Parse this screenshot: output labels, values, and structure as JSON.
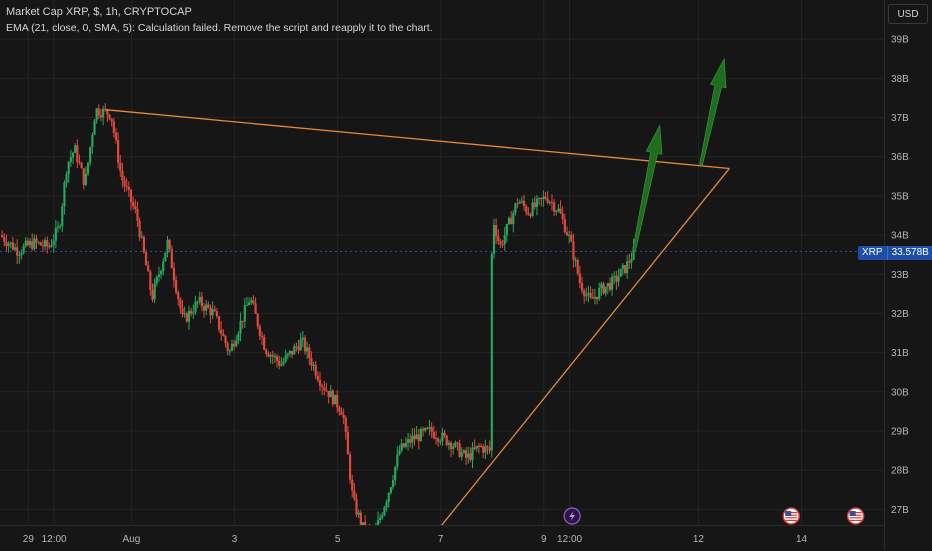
{
  "header": {
    "title": "Market Cap XRP, $, 1h, CRYPTOCAP",
    "indicator_error": "EMA (21, close, 0, SMA, 5): Calculation failed. Remove the script and reapply it to the chart."
  },
  "currency_button": "USD",
  "last_price": {
    "symbol": "XRP",
    "value_label": "33.578B",
    "color": "#1e4fa8"
  },
  "colors": {
    "up": "#26a65b",
    "down": "#e0483c",
    "trendline": "#e5893a",
    "arrow": "#1f6e1f",
    "background": "#161616"
  },
  "event_icons": [
    "lightning-icon",
    "us-flag-icon",
    "us-flag-icon"
  ],
  "chart_data": {
    "type": "candlestick",
    "title": "Market Cap XRP, $, 1h, CRYPTOCAP",
    "xlabel": "",
    "ylabel": "",
    "y_unit": "B USD",
    "ylim": [
      26.6,
      40.0
    ],
    "y_ticks": [
      27,
      28,
      29,
      30,
      31,
      32,
      33,
      34,
      35,
      36,
      37,
      38,
      39
    ],
    "y_tick_labels": [
      "27B",
      "28B",
      "29B",
      "30B",
      "31B",
      "32B",
      "33B",
      "34B",
      "35B",
      "36B",
      "37B",
      "38B",
      "39B"
    ],
    "x_ticks": [
      {
        "label": "29",
        "day": 29.0
      },
      {
        "label": "12:00",
        "day": 29.5
      },
      {
        "label": "Aug",
        "day": 31.0
      },
      {
        "label": "3",
        "day": 33.0
      },
      {
        "label": "5",
        "day": 35.0
      },
      {
        "label": "7",
        "day": 37.0
      },
      {
        "label": "9",
        "day": 39.0
      },
      {
        "label": "12:00",
        "day": 39.5
      },
      {
        "label": "12",
        "day": 42.0
      },
      {
        "label": "14",
        "day": 44.0
      }
    ],
    "x_range_days": [
      28.45,
      45.6
    ],
    "price_path": [
      [
        28.45,
        34.0
      ],
      [
        28.8,
        33.6
      ],
      [
        29.1,
        33.8
      ],
      [
        29.4,
        33.7
      ],
      [
        29.6,
        34.2
      ],
      [
        29.75,
        35.8
      ],
      [
        29.9,
        36.2
      ],
      [
        30.1,
        35.3
      ],
      [
        30.3,
        37.2
      ],
      [
        30.6,
        37.1
      ],
      [
        30.8,
        35.5
      ],
      [
        31.1,
        34.5
      ],
      [
        31.4,
        32.4
      ],
      [
        31.7,
        33.8
      ],
      [
        32.0,
        31.8
      ],
      [
        32.3,
        32.3
      ],
      [
        32.6,
        32.0
      ],
      [
        32.9,
        31.0
      ],
      [
        33.3,
        32.4
      ],
      [
        33.6,
        31.1
      ],
      [
        33.9,
        30.7
      ],
      [
        34.3,
        31.3
      ],
      [
        34.7,
        30.2
      ],
      [
        35.1,
        29.5
      ],
      [
        35.3,
        27.2
      ],
      [
        35.5,
        26.5
      ],
      [
        35.7,
        26.3
      ],
      [
        36.0,
        27.5
      ],
      [
        36.2,
        28.5
      ],
      [
        36.45,
        28.8
      ],
      [
        36.8,
        29.0
      ],
      [
        37.2,
        28.7
      ],
      [
        37.5,
        28.3
      ],
      [
        37.75,
        28.6
      ],
      [
        37.95,
        28.5
      ],
      [
        38.0,
        34.5
      ],
      [
        38.15,
        33.7
      ],
      [
        38.3,
        34.2
      ],
      [
        38.5,
        34.9
      ],
      [
        38.7,
        34.6
      ],
      [
        38.9,
        34.8
      ],
      [
        39.05,
        35.0
      ],
      [
        39.3,
        34.6
      ],
      [
        39.5,
        33.9
      ],
      [
        39.7,
        32.8
      ],
      [
        39.9,
        32.3
      ],
      [
        40.1,
        32.6
      ],
      [
        40.35,
        32.8
      ],
      [
        40.6,
        33.2
      ],
      [
        40.75,
        33.58
      ]
    ],
    "annotations": [
      {
        "type": "trendline",
        "name": "upper-resistance",
        "from": [
          30.5,
          37.2
        ],
        "to": [
          42.6,
          35.7
        ]
      },
      {
        "type": "trendline",
        "name": "lower-support",
        "from": [
          36.9,
          26.4
        ],
        "to": [
          42.6,
          35.7
        ]
      },
      {
        "type": "arrow",
        "name": "projection-arrow-1",
        "from": [
          40.75,
          33.6
        ],
        "to": [
          41.25,
          36.8
        ]
      },
      {
        "type": "arrow",
        "name": "projection-arrow-2",
        "from": [
          42.05,
          35.8
        ],
        "to": [
          42.5,
          38.5
        ]
      }
    ]
  }
}
